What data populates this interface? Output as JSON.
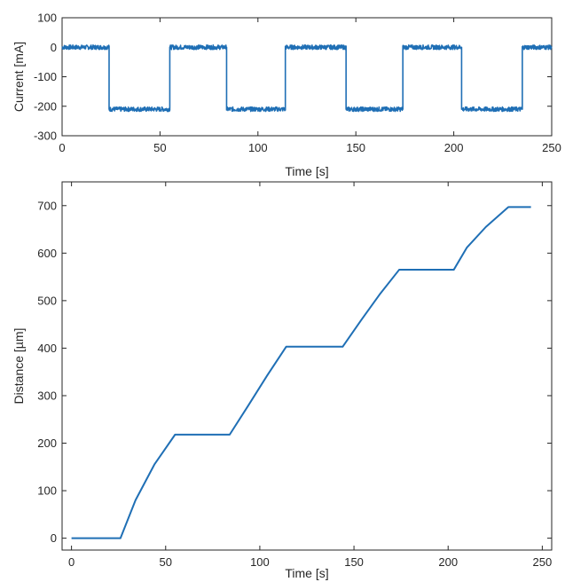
{
  "chart_data": [
    {
      "type": "line",
      "xlabel": "Time [s]",
      "ylabel": "Current [mA]",
      "xlim": [
        0,
        250
      ],
      "ylim": [
        -300,
        100
      ],
      "xticks": [
        0,
        50,
        100,
        150,
        200,
        250
      ],
      "yticks": [
        -300,
        -200,
        -100,
        0,
        100
      ],
      "grid": false,
      "line_color": "#1f6fb5",
      "series": [
        {
          "x": [
            0,
            24,
            24,
            55,
            55,
            84,
            84,
            114,
            114,
            145,
            145,
            174,
            174,
            204,
            204,
            235,
            235,
            250
          ],
          "y": [
            0,
            0,
            -210,
            -210,
            0,
            0,
            -210,
            -210,
            0,
            0,
            -210,
            -210,
            0,
            0,
            -210,
            -210,
            0,
            0
          ]
        }
      ]
    },
    {
      "type": "line",
      "xlabel": "Time [s]",
      "ylabel": "Distance [µm]",
      "xlim": [
        -5,
        255
      ],
      "ylim": [
        -25,
        750
      ],
      "xticks": [
        0,
        50,
        100,
        150,
        200,
        250
      ],
      "yticks": [
        0,
        100,
        200,
        300,
        400,
        500,
        600,
        700
      ],
      "grid": false,
      "line_color": "#1f6fb5",
      "series": [
        {
          "x": [
            0,
            26,
            34,
            44,
            55,
            84,
            94,
            104,
            114,
            144,
            154,
            164,
            174,
            203,
            210,
            220,
            232,
            244
          ],
          "y": [
            0,
            0,
            80,
            155,
            218,
            218,
            280,
            343,
            403,
            403,
            460,
            515,
            565,
            565,
            612,
            655,
            697,
            697
          ]
        }
      ]
    }
  ]
}
